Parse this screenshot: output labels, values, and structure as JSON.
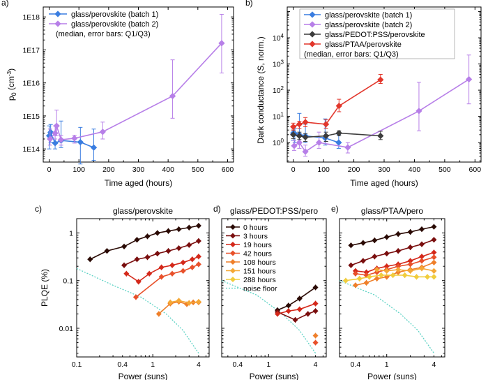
{
  "chart_data": [
    {
      "panel": "a)",
      "type": "line",
      "yscale": "log",
      "xlabel": "Time aged (hours)",
      "ylabel": "p0 (cm-3)",
      "xlim": [
        -20,
        620
      ],
      "ylim": [
        40000000000000,
        2000000000000000000
      ],
      "xticks": [
        "0",
        "100",
        "200",
        "300",
        "400",
        "500",
        "600"
      ],
      "yticks": [
        "1E14",
        "1E15",
        "1E16",
        "1E17",
        "1E18"
      ],
      "legend_note": "(median, error bars: Q1/Q3)",
      "series": [
        {
          "name": "glass/perovskite (batch 1)",
          "color": "#3a7de0",
          "marker": "diamond",
          "x": [
            0,
            5,
            20,
            40,
            105,
            150
          ],
          "y": [
            250000000000000.0,
            320000000000000.0,
            150000000000000.0,
            180000000000000.0,
            160000000000000.0,
            110000000000000.0
          ],
          "lo": [
            100000000000000.0,
            160000000000000.0,
            100000000000000.0,
            110000000000000.0,
            35000000000000.0,
            45000000000000.0
          ],
          "hi": [
            500000000000000.0,
            550000000000000.0,
            300000000000000.0,
            700000000000000.0,
            450000000000000.0,
            400000000000000.0
          ]
        },
        {
          "name": "glass/perovskite (batch 2)",
          "color": "#b77fe8",
          "marker": "diamond",
          "x": [
            3,
            20,
            25,
            40,
            85,
            180,
            415,
            580
          ],
          "y": [
            200000000000000.0,
            300000000000000.0,
            500000000000000.0,
            190000000000000.0,
            210000000000000.0,
            330000000000000.0,
            4000000000000000.0,
            1.6e+17
          ],
          "lo": [
            130000000000000.0,
            200000000000000.0,
            250000000000000.0,
            130000000000000.0,
            150000000000000.0,
            200000000000000.0,
            850000000000000.0,
            2e+16
          ],
          "hi": [
            400000000000000.0,
            500000000000000.0,
            1500000000000000.0,
            260000000000000.0,
            260000000000000.0,
            650000000000000.0,
            5e+16,
            1.2e+18
          ]
        }
      ]
    },
    {
      "panel": "b)",
      "type": "line",
      "yscale": "log",
      "xlabel": "Time aged (hours)",
      "ylabel": "Dark conductance (S, norm.)",
      "xlim": [
        -20,
        620
      ],
      "ylim": [
        0.18,
        150000
      ],
      "xticks": [
        "0",
        "100",
        "200",
        "300",
        "400",
        "500",
        "600"
      ],
      "yticks": [
        "10^0",
        "10^1",
        "10^2",
        "10^3",
        "10^4"
      ],
      "legend_note": "(median, error bars: Q1/Q3)",
      "series": [
        {
          "name": "glass/perovskite (batch 1)",
          "color": "#3a7de0",
          "marker": "diamond",
          "x": [
            0,
            5,
            20,
            40,
            105,
            150
          ],
          "y": [
            2.3,
            2.2,
            2.0,
            1.8,
            1.5,
            1.0
          ],
          "lo": [
            1.2,
            1.0,
            1.0,
            1.0,
            0.8,
            0.6
          ],
          "hi": [
            4.0,
            3.5,
            13,
            5.0,
            8.0,
            2.0
          ]
        },
        {
          "name": "glass/perovskite (batch 2)",
          "color": "#b77fe8",
          "marker": "diamond",
          "x": [
            3,
            20,
            40,
            85,
            180,
            415,
            580
          ],
          "y": [
            0.75,
            1.0,
            0.45,
            1.0,
            0.65,
            16,
            260
          ],
          "lo": [
            0.5,
            0.6,
            0.3,
            0.6,
            0.4,
            2.8,
            30
          ],
          "hi": [
            1.2,
            2.0,
            0.8,
            2.5,
            1.0,
            200,
            2200
          ]
        },
        {
          "name": "glass/PEDOT:PSS/perovskite",
          "color": "#3c3c3c",
          "marker": "diamond",
          "x": [
            0,
            20,
            40,
            108,
            151,
            288
          ],
          "y": [
            2.0,
            1.8,
            1.6,
            1.8,
            2.3,
            1.8
          ],
          "lo": [
            1.4,
            1.3,
            1.1,
            1.1,
            1.8,
            1.3
          ],
          "hi": [
            3.0,
            2.5,
            2.2,
            2.5,
            2.8,
            2.7
          ]
        },
        {
          "name": "glass/PTAA/perovskite",
          "color": "#e2362b",
          "marker": "diamond",
          "x": [
            0,
            20,
            40,
            108,
            151,
            288
          ],
          "y": [
            4.0,
            5.0,
            6.0,
            5.0,
            25,
            250
          ],
          "lo": [
            3.0,
            3.5,
            4.0,
            3.5,
            15,
            180
          ],
          "hi": [
            5.5,
            6.5,
            9.0,
            7.5,
            45,
            400
          ]
        }
      ]
    },
    {
      "panel": "c)",
      "type": "line",
      "xscale": "log",
      "yscale": "log",
      "title": "glass/perovskite",
      "xlabel": "Power (suns)",
      "ylabel": "PLQE (%)",
      "xlim": [
        0.1,
        5.5
      ],
      "ylim": [
        0.0025,
        2
      ],
      "xticks": [
        "0.1",
        "0.4",
        "1",
        "4"
      ],
      "yticks": [
        "0.01",
        "0.1",
        "1"
      ],
      "series": [
        {
          "name": "0 hours",
          "color": "#2a0a04",
          "x": [
            0.15,
            0.25,
            0.42,
            0.62,
            0.85,
            1.15,
            1.6,
            2.2,
            3.0,
            4.0
          ],
          "y": [
            0.28,
            0.42,
            0.52,
            0.72,
            0.85,
            1.0,
            1.1,
            1.2,
            1.3,
            1.42
          ]
        },
        {
          "name": "3 hours",
          "color": "#7a0e0e",
          "x": [
            0.42,
            0.62,
            0.85,
            1.15,
            1.6,
            2.2,
            3.0,
            4.0
          ],
          "y": [
            0.21,
            0.28,
            0.31,
            0.37,
            0.42,
            0.48,
            0.56,
            0.68
          ]
        },
        {
          "name": "19 hours",
          "color": "#d4281a",
          "x": [
            0.45,
            0.65,
            0.9,
            1.3,
            1.8,
            2.5,
            3.3,
            4.0
          ],
          "y": [
            0.14,
            0.095,
            0.14,
            0.19,
            0.21,
            0.24,
            0.28,
            0.32
          ]
        },
        {
          "name": "42 hours",
          "color": "#e8502a",
          "x": [
            0.6,
            1.3,
            1.8,
            2.5,
            3.3,
            4.0
          ],
          "y": [
            0.045,
            0.12,
            0.14,
            0.16,
            0.19,
            0.22
          ]
        },
        {
          "name": "108 hours",
          "color": "#ef7f2a",
          "x": [
            1.2,
            1.7,
            2.2,
            2.8,
            3.4,
            4.0
          ],
          "y": [
            0.02,
            0.033,
            0.036,
            0.032,
            0.035,
            0.035
          ]
        },
        {
          "name": "151 hours",
          "color": "#f5a836",
          "x": [
            1.7,
            2.2,
            3.0,
            4.0
          ],
          "y": [
            0.035,
            0.038,
            0.034,
            0.036
          ]
        }
      ],
      "noise_floor": {
        "x": [
          0.1,
          0.3,
          0.7,
          1.5,
          2.5,
          4.0
        ],
        "y": [
          0.18,
          0.08,
          0.045,
          0.02,
          0.009,
          0.003
        ]
      }
    },
    {
      "panel": "d)",
      "type": "line",
      "xscale": "log",
      "yscale": "log",
      "title": "glass/PEDOT:PSS/pero",
      "xlabel": "Power (suns)",
      "xlim": [
        0.25,
        5.5
      ],
      "ylim": [
        0.0025,
        2
      ],
      "xticks": [
        "0.4",
        "1",
        "4"
      ],
      "series": [
        {
          "name": "0 hours",
          "color": "#2a0a04",
          "x": [
            1.3,
            1.8,
            2.5,
            4.0
          ],
          "y": [
            0.024,
            0.03,
            0.042,
            0.072
          ]
        },
        {
          "name": "3 hours",
          "color": "#7a0e0e",
          "x": [
            1.3,
            2.2,
            3.2,
            4.0
          ],
          "y": [
            0.022,
            0.015,
            0.02,
            0.023
          ]
        },
        {
          "name": "19 hours",
          "color": "#d4281a",
          "x": [
            1.3,
            1.8,
            2.5,
            4.0
          ],
          "y": [
            0.02,
            0.023,
            0.025,
            0.033
          ]
        },
        {
          "name": "42 hours",
          "color": "#e8502a",
          "x": [
            4.0
          ],
          "y": [
            0.005
          ]
        },
        {
          "name": "108 hours",
          "color": "#ef7f2a",
          "x": [
            4.0
          ],
          "y": [
            0.007
          ]
        },
        {
          "name": "151 hours",
          "color": "#f5a836",
          "x": [],
          "y": []
        },
        {
          "name": "288 hours",
          "color": "#f1cd3e",
          "x": [],
          "y": []
        }
      ],
      "noise_floor": {
        "x": [
          0.25,
          0.7,
          1.5,
          2.5,
          4.0
        ],
        "y": [
          0.1,
          0.05,
          0.02,
          0.009,
          0.003
        ]
      },
      "legend": [
        "0 hours",
        "3 hours",
        "19 hours",
        "42 hours",
        "108 hours",
        "151 hours",
        "288 hours",
        "noise floor"
      ]
    },
    {
      "panel": "e)",
      "type": "line",
      "xscale": "log",
      "yscale": "log",
      "title": "glass/PTAA/pero",
      "xlabel": "Power (suns)",
      "xlim": [
        0.25,
        5.5
      ],
      "ylim": [
        0.0025,
        2
      ],
      "xticks": [
        "0.4",
        "1",
        "4"
      ],
      "series": [
        {
          "name": "0 hours",
          "color": "#2a0a04",
          "x": [
            0.35,
            0.5,
            0.7,
            1.0,
            1.4,
            2.0,
            2.8,
            4.0
          ],
          "y": [
            0.55,
            0.62,
            0.7,
            0.82,
            0.95,
            1.05,
            1.2,
            1.35
          ]
        },
        {
          "name": "3 hours",
          "color": "#7a0e0e",
          "x": [
            0.35,
            0.5,
            0.7,
            1.0,
            1.4,
            2.0,
            2.8,
            4.0
          ],
          "y": [
            0.21,
            0.26,
            0.32,
            0.37,
            0.42,
            0.5,
            0.58,
            0.72
          ]
        },
        {
          "name": "19 hours",
          "color": "#d4281a",
          "x": [
            0.4,
            0.55,
            0.75,
            1.0,
            1.4,
            2.0,
            2.8,
            4.0
          ],
          "y": [
            0.16,
            0.15,
            0.18,
            0.2,
            0.22,
            0.26,
            0.32,
            0.39
          ]
        },
        {
          "name": "42 hours",
          "color": "#e8502a",
          "x": [
            0.4,
            0.55,
            0.75,
            1.0,
            1.4,
            2.0,
            2.8,
            4.0
          ],
          "y": [
            0.14,
            0.13,
            0.15,
            0.17,
            0.2,
            0.22,
            0.26,
            0.31
          ]
        },
        {
          "name": "108 hours",
          "color": "#ef7f2a",
          "x": [
            0.4,
            0.55,
            0.75,
            1.0,
            1.4,
            2.0,
            2.8,
            4.0
          ],
          "y": [
            0.08,
            0.09,
            0.11,
            0.12,
            0.15,
            0.17,
            0.19,
            0.24
          ]
        },
        {
          "name": "151 hours",
          "color": "#f5a836",
          "x": [
            0.75,
            1.0,
            1.4,
            2.0,
            2.8,
            4.0
          ],
          "y": [
            0.17,
            0.16,
            0.17,
            0.16,
            0.18,
            0.16
          ]
        },
        {
          "name": "288 hours",
          "color": "#f1cd3e",
          "x": [
            0.3,
            0.45,
            0.6,
            0.85,
            1.2,
            1.7,
            2.4,
            3.3,
            4.0
          ],
          "y": [
            0.1,
            0.11,
            0.12,
            0.13,
            0.13,
            0.13,
            0.12,
            0.12,
            0.12
          ]
        }
      ],
      "noise_floor": {
        "x": [
          0.25,
          0.7,
          1.5,
          2.5,
          4.0
        ],
        "y": [
          0.1,
          0.05,
          0.02,
          0.009,
          0.003
        ]
      }
    }
  ]
}
